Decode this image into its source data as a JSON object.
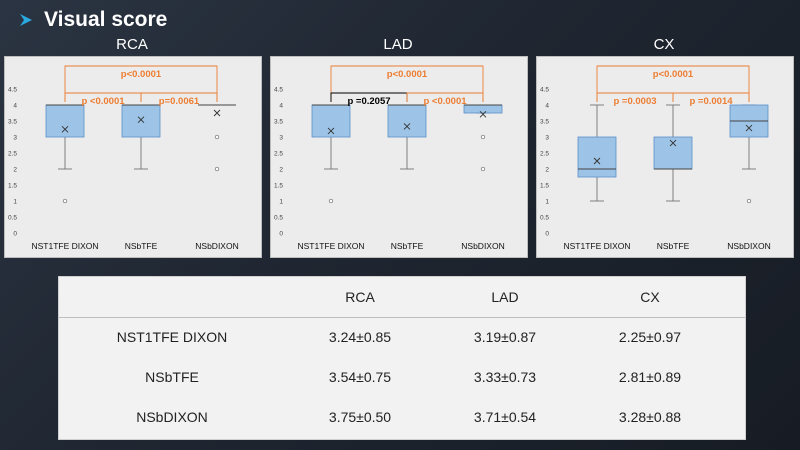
{
  "slide": {
    "title": "Visual score"
  },
  "chart_data": [
    {
      "type": "boxplot",
      "title": "RCA",
      "categories": [
        "NST1TFE DIXON",
        "NSbTFE",
        "NSbDIXON"
      ],
      "ylim": [
        0,
        4.5
      ],
      "yticks": [
        "0",
        "0.5",
        "1",
        "1.5",
        "2",
        "2.5",
        "3",
        "3.5",
        "4",
        "4.5"
      ],
      "boxes": [
        {
          "min": 2,
          "q1": 3,
          "median": 4,
          "q3": 4,
          "max": 4,
          "mean": 3.24,
          "outliers": [
            1
          ]
        },
        {
          "min": 2,
          "q1": 3,
          "median": 4,
          "q3": 4,
          "max": 4,
          "mean": 3.54,
          "outliers": []
        },
        {
          "min": 4,
          "q1": 4,
          "median": 4,
          "q3": 4,
          "max": 4,
          "mean": 3.75,
          "outliers": [
            3,
            2
          ]
        }
      ],
      "comparisons": [
        {
          "from": 0,
          "to": 2,
          "label": "p<0.0001",
          "level": 2,
          "color": "#ed7d31"
        },
        {
          "from": 0,
          "to": 1,
          "label": "p <0.0001",
          "level": 1,
          "color": "#ed7d31"
        },
        {
          "from": 1,
          "to": 2,
          "label": "p=0.0061",
          "level": 1,
          "color": "#ed7d31"
        }
      ]
    },
    {
      "type": "boxplot",
      "title": "LAD",
      "categories": [
        "NST1TFE DIXON",
        "NSbTFE",
        "NSbDIXON"
      ],
      "ylim": [
        0,
        4.5
      ],
      "yticks": [
        "0",
        "0.5",
        "1",
        "1.5",
        "2",
        "2.5",
        "3",
        "3.5",
        "4",
        "4.5"
      ],
      "boxes": [
        {
          "min": 2,
          "q1": 3,
          "median": 4,
          "q3": 4,
          "max": 4,
          "mean": 3.19,
          "outliers": [
            1
          ]
        },
        {
          "min": 2,
          "q1": 3,
          "median": 4,
          "q3": 4,
          "max": 4,
          "mean": 3.33,
          "outliers": []
        },
        {
          "min": 3.75,
          "q1": 3.75,
          "median": 4,
          "q3": 4,
          "max": 4,
          "mean": 3.71,
          "outliers": [
            3,
            2
          ]
        }
      ],
      "comparisons": [
        {
          "from": 0,
          "to": 2,
          "label": "p<0.0001",
          "level": 2,
          "color": "#ed7d31"
        },
        {
          "from": 0,
          "to": 1,
          "label": "p =0.2057",
          "level": 1,
          "color": "#000000"
        },
        {
          "from": 1,
          "to": 2,
          "label": "p <0.0001",
          "level": 1,
          "color": "#ed7d31"
        }
      ]
    },
    {
      "type": "boxplot",
      "title": "CX",
      "categories": [
        "NST1TFE DIXON",
        "NSbTFE",
        "NSbDIXON"
      ],
      "ylim": [
        0,
        4.5
      ],
      "yticks": [
        "0",
        "0.5",
        "1",
        "1.5",
        "2",
        "2.5",
        "3",
        "3.5",
        "4",
        "4.5"
      ],
      "boxes": [
        {
          "min": 1,
          "q1": 1.75,
          "median": 2,
          "q3": 3,
          "max": 4,
          "mean": 2.25,
          "outliers": []
        },
        {
          "min": 1,
          "q1": 2,
          "median": 2,
          "q3": 3,
          "max": 4,
          "mean": 2.81,
          "outliers": []
        },
        {
          "min": 2,
          "q1": 3,
          "median": 3.5,
          "q3": 4,
          "max": 4,
          "mean": 3.28,
          "outliers": [
            1
          ]
        }
      ],
      "comparisons": [
        {
          "from": 0,
          "to": 2,
          "label": "p<0.0001",
          "level": 2,
          "color": "#ed7d31"
        },
        {
          "from": 0,
          "to": 1,
          "label": "p =0.0003",
          "level": 1,
          "color": "#ed7d31"
        },
        {
          "from": 1,
          "to": 2,
          "label": "p =0.0014",
          "level": 1,
          "color": "#ed7d31"
        }
      ]
    }
  ],
  "table": {
    "headers": [
      "",
      "RCA",
      "LAD",
      "CX"
    ],
    "rows": [
      [
        "NST1TFE DIXON",
        "3.24±0.85",
        "3.19±0.87",
        "2.25±0.97"
      ],
      [
        "NSbTFE",
        "3.54±0.75",
        "3.33±0.73",
        "2.81±0.89"
      ],
      [
        "NSbDIXON",
        "3.75±0.50",
        "3.71±0.54",
        "3.28±0.88"
      ]
    ]
  },
  "colors": {
    "box_fill": "#9dc3e6",
    "box_stroke": "#5b8fc7",
    "accent_orange": "#ed7d31",
    "title_arrow": "#29a9e0"
  }
}
